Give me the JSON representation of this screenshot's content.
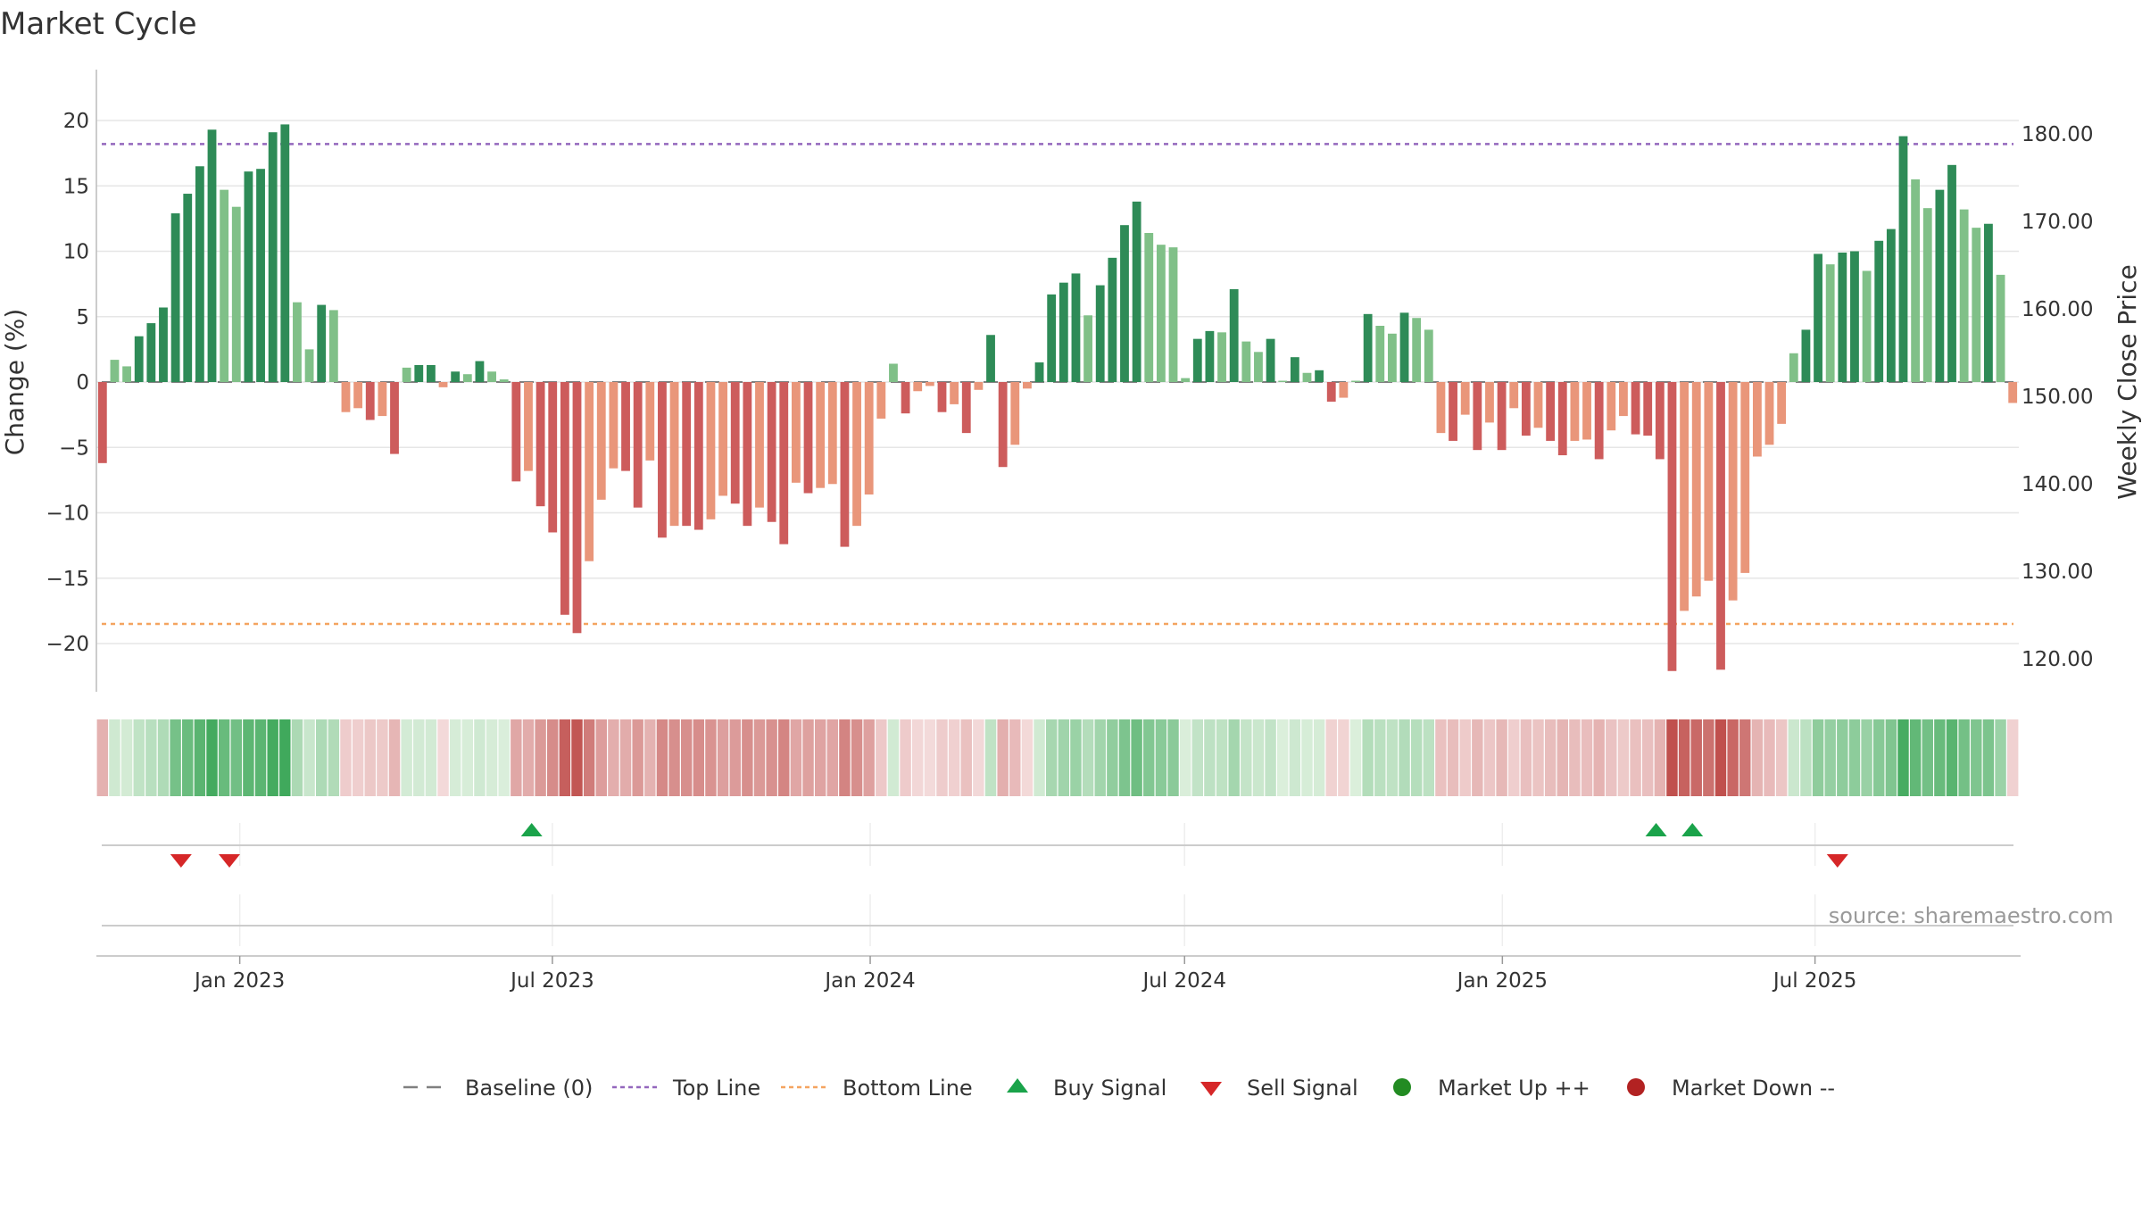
{
  "chart_data": {
    "type": "bar",
    "title": "Market Cycle",
    "ylabel": "Change (%)",
    "y2label": "Weekly Close Price",
    "ylim": [
      -24,
      24
    ],
    "y2lim": [
      116.5,
      189.5
    ],
    "yticks": [
      -20,
      -15,
      -10,
      -5,
      0,
      5,
      10,
      15,
      20
    ],
    "y2ticks": [
      120,
      130,
      140,
      150,
      160,
      170,
      180
    ],
    "y2tick_labels": [
      "120.00",
      "130.00",
      "140.00",
      "150.00",
      "160.00",
      "170.00",
      "180.00"
    ],
    "top_line": 18.2,
    "bottom_line": -18.5,
    "x_start": "2022-10-10",
    "x_end": "2025-10-27",
    "x_ticks": [
      {
        "date": "2023-01-01",
        "label": "Jan 2023"
      },
      {
        "date": "2023-07-01",
        "label": "Jul 2023"
      },
      {
        "date": "2024-01-01",
        "label": "Jan 2024"
      },
      {
        "date": "2024-07-01",
        "label": "Jul 2024"
      },
      {
        "date": "2025-01-01",
        "label": "Jan 2025"
      },
      {
        "date": "2025-07-01",
        "label": "Jul 2025"
      }
    ],
    "first_week": "2022-10-10",
    "weekly_change": [
      -6.2,
      1.7,
      1.2,
      3.5,
      4.5,
      5.7,
      12.9,
      14.4,
      16.5,
      19.3,
      14.7,
      13.4,
      16.1,
      16.3,
      19.1,
      19.7,
      6.1,
      2.5,
      5.9,
      5.5,
      -2.3,
      -2.0,
      -2.9,
      -2.6,
      -5.5,
      1.1,
      1.3,
      1.3,
      -0.4,
      0.8,
      0.6,
      1.6,
      0.8,
      0.2,
      -7.6,
      -6.8,
      -9.5,
      -11.5,
      -17.8,
      -19.2,
      -13.7,
      -9.0,
      -6.6,
      -6.8,
      -9.6,
      -6.0,
      -11.9,
      -11.0,
      -11.0,
      -11.3,
      -10.5,
      -8.7,
      -9.3,
      -11.0,
      -9.6,
      -10.7,
      -12.4,
      -7.7,
      -8.5,
      -8.1,
      -7.8,
      -12.6,
      -11.0,
      -8.6,
      -2.8,
      1.4,
      -2.4,
      -0.7,
      -0.3,
      -2.3,
      -1.7,
      -3.9,
      -0.6,
      3.6,
      -6.5,
      -4.8,
      -0.5,
      1.5,
      6.7,
      7.6,
      8.3,
      5.1,
      7.4,
      9.5,
      12.0,
      13.8,
      11.4,
      10.5,
      10.3,
      0.3,
      3.3,
      3.9,
      3.8,
      7.1,
      3.1,
      2.3,
      3.3,
      0.1,
      1.9,
      0.7,
      0.9,
      -1.5,
      -1.2,
      0.1,
      5.2,
      4.3,
      3.7,
      5.3,
      4.9,
      4.0,
      -3.9,
      -4.5,
      -2.5,
      -5.2,
      -3.1,
      -5.2,
      -2.0,
      -4.1,
      -3.5,
      -4.5,
      -5.6,
      -4.5,
      -4.4,
      -5.9,
      -3.7,
      -2.6,
      -4.0,
      -4.1,
      -5.9,
      -22.1,
      -17.5,
      -16.4,
      -15.2,
      -22.0,
      -16.7,
      -14.6,
      -5.7,
      -4.8,
      -3.2,
      2.2,
      4.0,
      9.8,
      9.0,
      9.9,
      10.0,
      8.5,
      10.8,
      11.7,
      18.8,
      15.5,
      13.3,
      14.7,
      16.6,
      13.2,
      11.8,
      12.1,
      8.2,
      -1.6
    ],
    "buy_signals": [
      "2023-06-19",
      "2025-03-31",
      "2025-04-21"
    ],
    "sell_signals": [
      "2022-11-28",
      "2022-12-26",
      "2025-07-14"
    ],
    "colors": {
      "up_strong": "#2e8b57",
      "up_weak": "#80c088",
      "down_strong": "#cd5c5c",
      "down_weak": "#e9967a",
      "top_line": "#9467bd",
      "bottom_line": "#f4a460",
      "baseline": "#808080",
      "buy": "#1aa34a",
      "sell": "#d62728",
      "market_up": "#228b22",
      "market_down": "#b22222"
    },
    "legend": [
      {
        "label": "Baseline (0)",
        "marker": "dash"
      },
      {
        "label": "Top Line",
        "marker": "dot-purple"
      },
      {
        "label": "Bottom Line",
        "marker": "dot-orange"
      },
      {
        "label": "Buy Signal",
        "marker": "triangle-up"
      },
      {
        "label": "Sell Signal",
        "marker": "triangle-down"
      },
      {
        "label": "Market Up ++",
        "marker": "circle-green"
      },
      {
        "label": "Market Down --",
        "marker": "circle-red"
      }
    ],
    "legend_position": "bottom-center"
  },
  "source_text": "source: sharemaestro.com"
}
